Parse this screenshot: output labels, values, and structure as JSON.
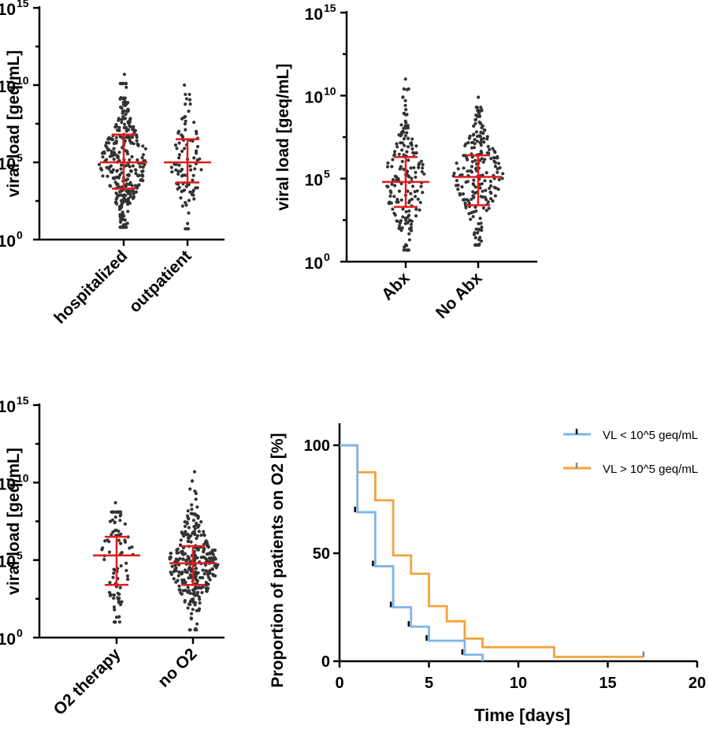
{
  "chart_data": [
    {
      "type": "scatter",
      "ylabel": "viral load [geq/mL]",
      "yscale": "log10",
      "ylim_exp": [
        0,
        15
      ],
      "y_ticks": [
        {
          "base": "10",
          "exp": "15"
        },
        {
          "base": "10",
          "exp": "10"
        },
        {
          "base": "10",
          "exp": "5"
        },
        {
          "base": "10",
          "exp": "0"
        }
      ],
      "categories": [
        "hospitalized",
        "outpatient"
      ],
      "series": [
        {
          "n": 320,
          "median_exp": 5.0,
          "iqr_exp": [
            3.3,
            6.8
          ],
          "max_exp": 10.7,
          "min_exp": 0.8
        },
        {
          "n": 90,
          "median_exp": 5.0,
          "iqr_exp": [
            3.7,
            6.5
          ],
          "max_exp": 10.0,
          "min_exp": 0.7
        }
      ]
    },
    {
      "type": "scatter",
      "ylabel": "viral load [geq/mL]",
      "yscale": "log10",
      "ylim_exp": [
        0,
        15
      ],
      "y_ticks": [
        {
          "base": "10",
          "exp": "15"
        },
        {
          "base": "10",
          "exp": "10"
        },
        {
          "base": "10",
          "exp": "5"
        },
        {
          "base": "10",
          "exp": "0"
        }
      ],
      "categories": [
        "Abx",
        "No Abx"
      ],
      "series": [
        {
          "n": 170,
          "median_exp": 4.8,
          "iqr_exp": [
            3.3,
            6.3
          ],
          "max_exp": 11.0,
          "min_exp": 0.7
        },
        {
          "n": 210,
          "median_exp": 5.1,
          "iqr_exp": [
            3.4,
            6.4
          ],
          "max_exp": 9.9,
          "min_exp": 1.0
        }
      ]
    },
    {
      "type": "scatter",
      "ylabel": "viral load [geq/mL]",
      "yscale": "log10",
      "ylim_exp": [
        0,
        15
      ],
      "y_ticks": [
        {
          "base": "10",
          "exp": "15"
        },
        {
          "base": "10",
          "exp": "10"
        },
        {
          "base": "10",
          "exp": "5"
        },
        {
          "base": "10",
          "exp": "0"
        }
      ],
      "categories": [
        "O2 therapy",
        "no O2"
      ],
      "series": [
        {
          "n": 95,
          "median_exp": 5.3,
          "iqr_exp": [
            3.4,
            6.5
          ],
          "max_exp": 8.7,
          "min_exp": 1.0
        },
        {
          "n": 300,
          "median_exp": 4.8,
          "iqr_exp": [
            3.4,
            5.9
          ],
          "max_exp": 10.7,
          "min_exp": 0.5
        }
      ]
    },
    {
      "type": "line",
      "step": true,
      "xlabel": "Time [days]",
      "ylabel": "Proportion of patients on O2 [%]",
      "xlim": [
        0,
        20
      ],
      "ylim": [
        0,
        110
      ],
      "x_ticks": [
        0,
        5,
        10,
        15,
        20
      ],
      "y_ticks": [
        0,
        50,
        100
      ],
      "legend_position": "top-right",
      "series": [
        {
          "name": "VL < 10^5 geq/mL",
          "color": "#7fb4ea",
          "x": [
            0,
            1,
            2,
            3,
            4,
            5,
            7,
            8
          ],
          "y": [
            100,
            69,
            44,
            25,
            16,
            9.5,
            3,
            0
          ],
          "censor_x": [
            1,
            2,
            3,
            4,
            5,
            7
          ],
          "censor_y": [
            69,
            44,
            25,
            16,
            9.5,
            3
          ]
        },
        {
          "name": "VL > 10^5 geq/mL",
          "color": "#f4a23b",
          "x": [
            0,
            1,
            2,
            3,
            4,
            5,
            6,
            7,
            8,
            12,
            17
          ],
          "y": [
            100,
            87.5,
            74.5,
            49,
            40.5,
            25.5,
            18.5,
            10.5,
            6.5,
            2,
            2
          ],
          "censor_x": [
            17
          ],
          "censor_y": [
            2
          ]
        }
      ]
    }
  ]
}
